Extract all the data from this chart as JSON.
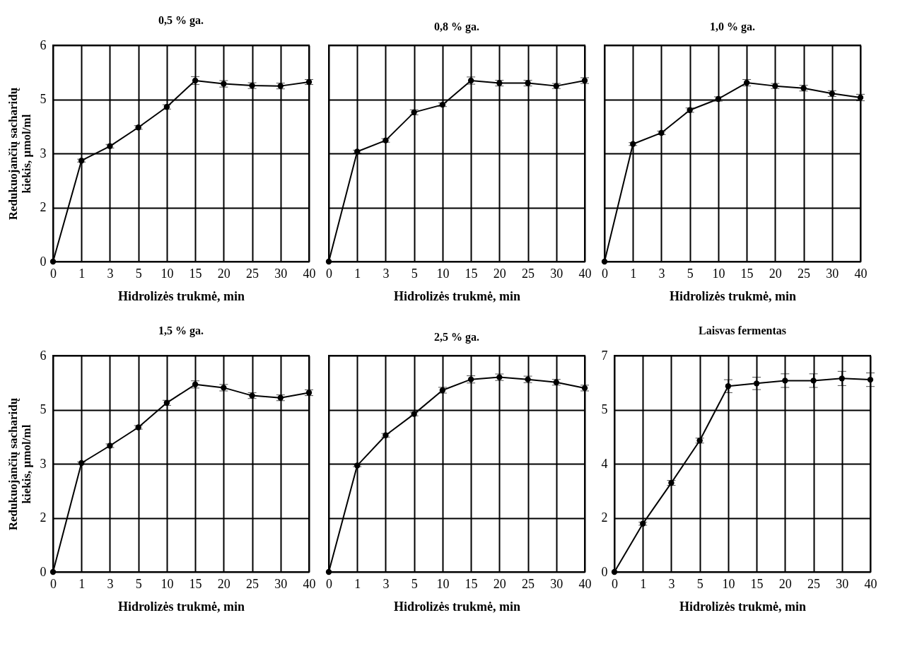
{
  "chart_data": [
    {
      "type": "line",
      "title": "0,5 % ga.",
      "xlabel": "Hidrolizės trukmė, min",
      "ylabel": "Redukuojančių sacharidų kiekis, µmol/ml",
      "categories": [
        "0",
        "1",
        "3",
        "5",
        "10",
        "15",
        "20",
        "25",
        "30",
        "40"
      ],
      "ylim": [
        0,
        6
      ],
      "yticks": [
        0,
        {
          "value": 1.5,
          "label": "2"
        },
        3,
        {
          "value": 4.5,
          "label": "5"
        },
        6
      ],
      "grid": true,
      "marker": "circle",
      "series": [
        {
          "color": "#000000",
          "values": [
            0,
            2.8,
            3.2,
            3.72,
            4.29,
            5.02,
            4.93,
            4.88,
            4.87,
            4.98
          ],
          "errors": [
            null,
            0.04,
            0.05,
            0.05,
            0.06,
            0.11,
            0.09,
            0.08,
            0.08,
            0.07
          ]
        }
      ]
    },
    {
      "type": "line",
      "title": "0,8 % ga.",
      "xlabel": "Hidrolizės trukmė, min",
      "categories": [
        "0",
        "1",
        "3",
        "5",
        "10",
        "15",
        "20",
        "25",
        "30",
        "40"
      ],
      "ylim": [
        0,
        6
      ],
      "yticks": [
        0,
        1.5,
        3,
        4.5,
        6
      ],
      "grid": true,
      "marker": "circle",
      "tick_labels": "x",
      "series": [
        {
          "color": "#000000",
          "values": [
            0,
            3.05,
            3.36,
            4.14,
            4.35,
            5.02,
            4.95,
            4.95,
            4.87,
            5.02
          ],
          "errors": [
            null,
            0.04,
            0.05,
            0.07,
            0.05,
            0.1,
            0.08,
            0.08,
            0.07,
            0.08
          ]
        }
      ]
    },
    {
      "type": "line",
      "title": "1,0 % ga.",
      "xlabel": "Hidrolizės trukmė, min",
      "categories": [
        "0",
        "1",
        "3",
        "5",
        "10",
        "15",
        "20",
        "25",
        "30",
        "40"
      ],
      "ylim": [
        0,
        6
      ],
      "yticks": [
        0,
        1.5,
        3,
        4.5,
        6
      ],
      "grid": true,
      "marker": "circle",
      "tick_labels": "x",
      "series": [
        {
          "color": "#000000",
          "values": [
            0,
            3.26,
            3.57,
            4.2,
            4.51,
            4.96,
            4.87,
            4.81,
            4.66,
            4.55
          ],
          "errors": [
            null,
            0.04,
            0.05,
            0.06,
            0.06,
            0.09,
            0.07,
            0.08,
            0.08,
            0.09
          ]
        }
      ]
    },
    {
      "type": "line",
      "title": "1,5 % ga.",
      "xlabel": "Hidrolizės trukmė, min",
      "ylabel": "Redukuojančių sacharidų kiekis, µmol/ml",
      "categories": [
        "0",
        "1",
        "3",
        "5",
        "10",
        "15",
        "20",
        "25",
        "30",
        "40"
      ],
      "ylim": [
        0,
        6
      ],
      "yticks": [
        0,
        {
          "value": 1.5,
          "label": "2"
        },
        3,
        {
          "value": 4.5,
          "label": "5"
        },
        6
      ],
      "grid": true,
      "marker": "circle",
      "series": [
        {
          "color": "#000000",
          "values": [
            0,
            3.02,
            3.5,
            4.01,
            4.69,
            5.2,
            5.11,
            4.89,
            4.83,
            4.97
          ],
          "errors": [
            null,
            0.03,
            0.05,
            0.05,
            0.07,
            0.1,
            0.09,
            0.08,
            0.08,
            0.08
          ]
        }
      ]
    },
    {
      "type": "line",
      "title": "2,5 % ga.",
      "xlabel": "Hidrolizės trukmė, min",
      "categories": [
        "0",
        "1",
        "3",
        "5",
        "10",
        "15",
        "20",
        "25",
        "30",
        "40"
      ],
      "ylim": [
        0,
        6
      ],
      "yticks": [
        0,
        1.5,
        3,
        4.5,
        6
      ],
      "grid": true,
      "marker": "circle",
      "tick_labels": "x",
      "series": [
        {
          "color": "#000000",
          "values": [
            0,
            2.95,
            3.79,
            4.38,
            5.04,
            5.34,
            5.4,
            5.34,
            5.26,
            5.1
          ],
          "errors": [
            null,
            0.03,
            0.05,
            0.05,
            0.08,
            0.1,
            0.09,
            0.09,
            0.08,
            0.08
          ]
        }
      ]
    },
    {
      "type": "line",
      "title": "Laisvas fermentas",
      "xlabel": "Hidrolizės trukmė, min",
      "categories": [
        "0",
        "1",
        "3",
        "5",
        "10",
        "15",
        "20",
        "25",
        "30",
        "40"
      ],
      "ylim": [
        0,
        7
      ],
      "yticks": [
        0,
        {
          "value": 1.75,
          "label": "2"
        },
        {
          "value": 3.5,
          "label": "4"
        },
        {
          "value": 5.25,
          "label": "5"
        },
        7
      ],
      "grid": true,
      "marker": "circle",
      "series": [
        {
          "color": "#000000",
          "values": [
            0,
            1.56,
            2.88,
            4.25,
            6.01,
            6.1,
            6.19,
            6.19,
            6.26,
            6.22
          ],
          "errors": [
            null,
            0.05,
            0.08,
            0.08,
            0.21,
            0.2,
            0.22,
            0.22,
            0.23,
            0.22
          ]
        }
      ]
    }
  ]
}
